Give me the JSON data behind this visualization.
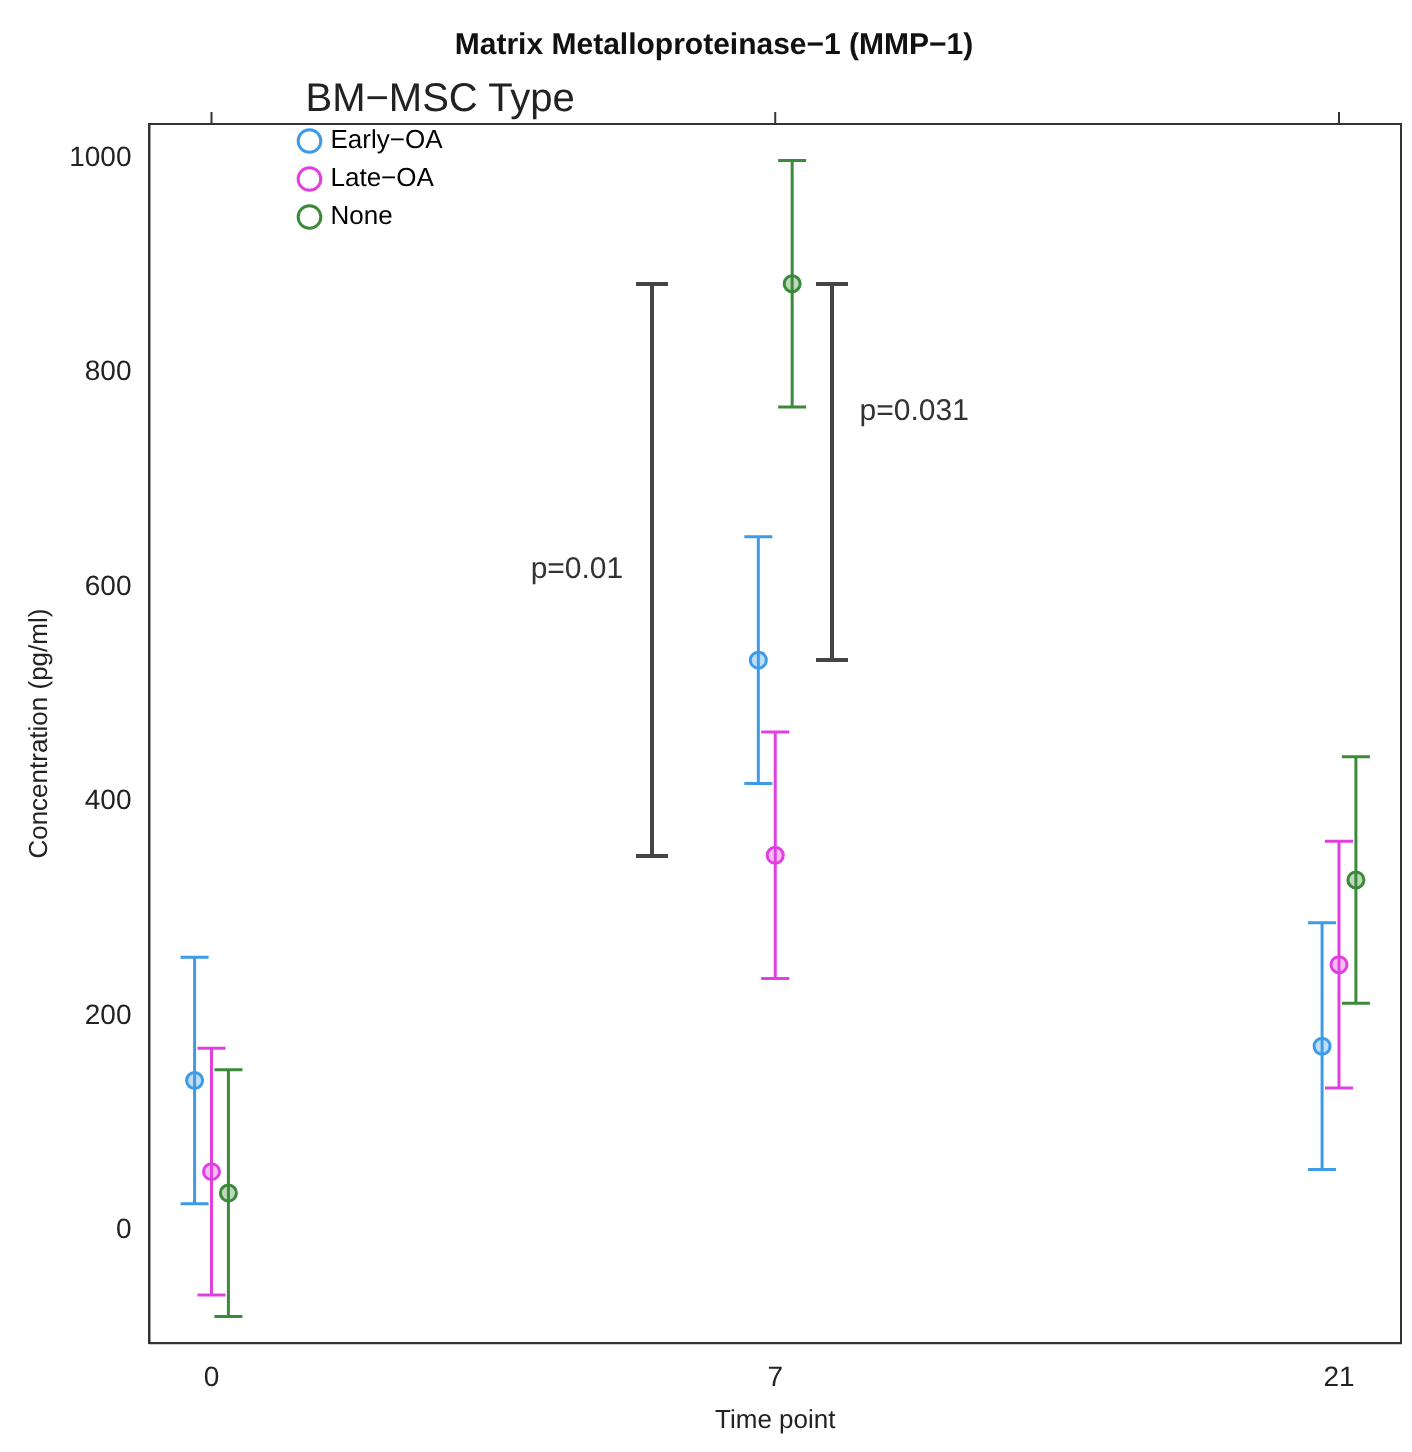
{
  "chart_data": {
    "type": "scatter",
    "title": "Matrix Metalloproteinase−1 (MMP−1)",
    "xlabel": "Time point",
    "ylabel": "Concentration (pg/ml)",
    "legend_title": "BM−MSC Type",
    "categories": [
      "0",
      "7",
      "21"
    ],
    "series": [
      {
        "name": "Early−OA",
        "color": "#3d9be8",
        "values": [
          140,
          532,
          172
        ],
        "errors": [
          115,
          115,
          115
        ]
      },
      {
        "name": "Late−OA",
        "color": "#e040e0",
        "values": [
          55,
          350,
          248
        ],
        "errors": [
          115,
          115,
          115
        ]
      },
      {
        "name": "None",
        "color": "#3a8a3a",
        "values": [
          35,
          883,
          327
        ],
        "errors": [
          115,
          115,
          115
        ]
      }
    ],
    "ylim": [
      -105,
      1032
    ],
    "yticks": [
      0,
      200,
      400,
      600,
      800,
      1000
    ],
    "grid": false,
    "legend": "top left",
    "marker": "circle",
    "annotations": [
      "p=0.01",
      "p=0.031"
    ]
  }
}
